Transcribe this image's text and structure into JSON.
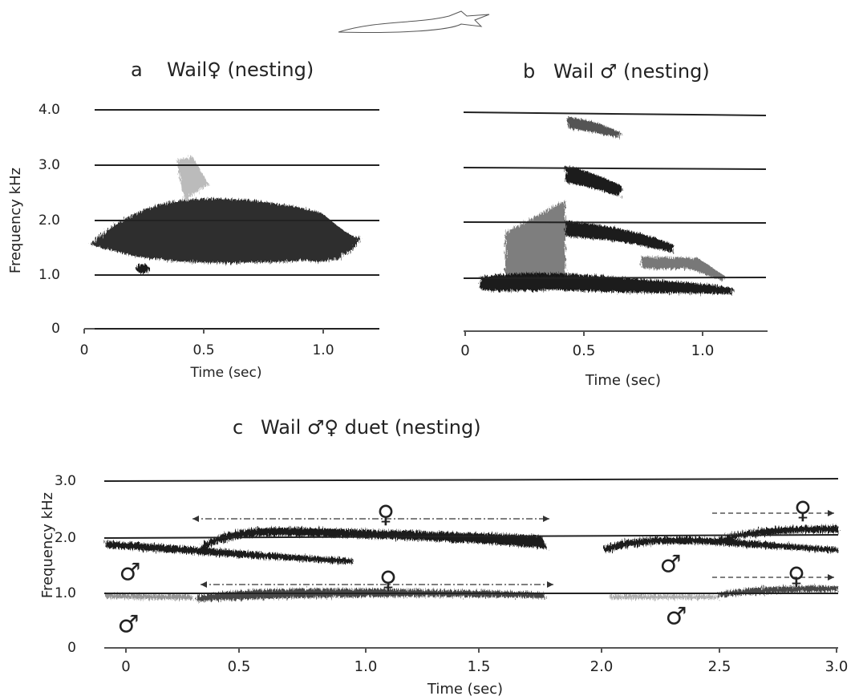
{
  "panels": [
    {
      "label": "a",
      "title": "Wail♀ (nesting)",
      "y_label": "Frequency kHz",
      "x_label": "Time (sec)",
      "y_ticks": [
        "0",
        "1.0",
        "2.0",
        "3.0",
        "4.0"
      ],
      "x_ticks": [
        "0",
        "0.5",
        "1.0"
      ]
    },
    {
      "label": "b",
      "title": "Wail ♂ (nesting)",
      "x_label": "Time (sec)",
      "x_ticks": [
        "0",
        "0.5",
        "1.0"
      ]
    },
    {
      "label": "c",
      "title": "Wail ♂♀ duet (nesting)",
      "y_label": "Frequency kHz",
      "x_label": "Time (sec)",
      "y_ticks": [
        "0",
        "1.0",
        "2.0",
        "3.0"
      ],
      "x_ticks": [
        "0",
        "0.5",
        "1.0",
        "1.5",
        "2.0",
        "2.5",
        "3.0"
      ],
      "annotations": [
        "♂",
        "♂",
        "♀",
        "♀",
        "♂",
        "♂",
        "♀",
        "♀"
      ]
    }
  ]
}
